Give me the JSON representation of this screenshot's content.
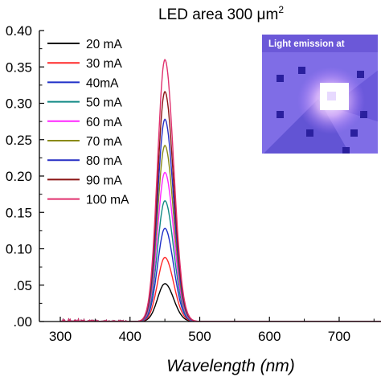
{
  "chart_data": {
    "type": "line",
    "title": "LED area 300 μm²",
    "title_main": "LED area 300 ",
    "title_unit": "μm",
    "title_sup": "2",
    "xlabel": "Wavelength (nm)",
    "ylabel": "",
    "xlim": [
      270,
      760
    ],
    "ylim": [
      0,
      0.4
    ],
    "xticks": [
      300,
      400,
      500,
      600,
      700
    ],
    "yticks": [
      0.0,
      0.05,
      0.1,
      0.15,
      0.2,
      0.25,
      0.3,
      0.35,
      0.4
    ],
    "ytick_labels": [
      ".00",
      ".05",
      "0.10",
      "0.15",
      "0.20",
      "0.25",
      "0.30",
      "0.35",
      "0.40"
    ],
    "grid": false,
    "legend_position": "top-left",
    "peak_wavelength": 450,
    "series": [
      {
        "name": "20 mA",
        "color": "#000000",
        "peak": 0.052
      },
      {
        "name": "30 mA",
        "color": "#ff2a2a",
        "peak": 0.088
      },
      {
        "name": "40mA",
        "color": "#1f2fc8",
        "peak": 0.128
      },
      {
        "name": "50 mA",
        "color": "#138a86",
        "peak": 0.166
      },
      {
        "name": "60 mA",
        "color": "#ff27ff",
        "peak": 0.205
      },
      {
        "name": "70 mA",
        "color": "#8a8a18",
        "peak": 0.242
      },
      {
        "name": "80 mA",
        "color": "#262ec4",
        "peak": 0.278
      },
      {
        "name": "90 mA",
        "color": "#8b1414",
        "peak": 0.316
      },
      {
        "name": "100 mA",
        "color": "#e0306e",
        "peak": 0.36
      }
    ],
    "inset": {
      "caption": "Light emission at"
    }
  }
}
